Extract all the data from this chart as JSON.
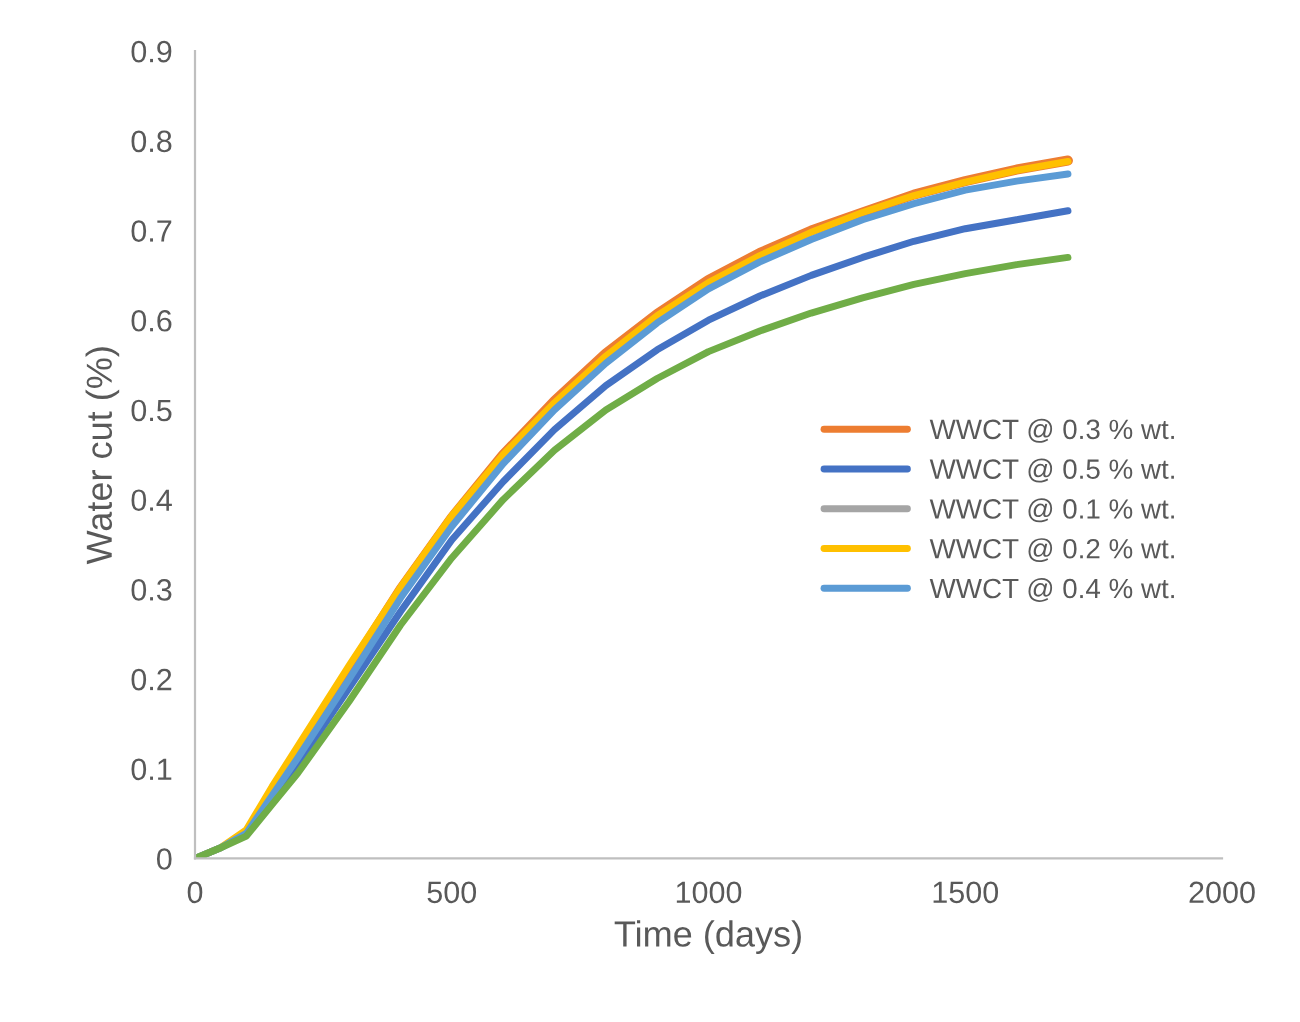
{
  "chart_data": {
    "type": "line",
    "xlabel": "Time (days)",
    "ylabel": "Water cut (%)",
    "x": [
      0,
      50,
      100,
      150,
      200,
      300,
      400,
      500,
      600,
      700,
      800,
      900,
      1000,
      1100,
      1200,
      1300,
      1400,
      1500,
      1600,
      1700
    ],
    "series": [
      {
        "name": "WWCT @ 0.3 % wt.",
        "color": "#ed7d31",
        "values": [
          null,
          null,
          null,
          0.075,
          0.12,
          0.21,
          0.3,
          0.38,
          0.45,
          0.51,
          0.563,
          0.607,
          0.645,
          0.675,
          0.7,
          0.72,
          0.74,
          0.755,
          0.768,
          0.778
        ]
      },
      {
        "name": "WWCT @ 0.5 % wt.",
        "color": "#4472c4",
        "values": [
          0,
          0.012,
          0.027,
          0.065,
          0.105,
          0.19,
          0.275,
          0.355,
          0.42,
          0.478,
          0.527,
          0.567,
          0.6,
          0.627,
          0.65,
          0.67,
          0.688,
          0.702,
          0.712,
          0.722
        ]
      },
      {
        "name": "WWCT @ 0.1 % wt.",
        "color": "#a5a5a5",
        "values": [
          null,
          null,
          null,
          null,
          null,
          null,
          null,
          null,
          null,
          null,
          null,
          null,
          null,
          null,
          null,
          null,
          null,
          null,
          null,
          null
        ]
      },
      {
        "name": "WWCT @ 0.2 % wt.",
        "color": "#ffc000",
        "values": [
          0,
          0.012,
          0.032,
          0.08,
          0.125,
          0.215,
          0.302,
          0.382,
          0.45,
          0.508,
          0.56,
          0.605,
          0.642,
          0.672,
          0.698,
          0.72,
          0.739,
          0.754,
          0.767,
          0.777
        ]
      },
      {
        "name": "WWCT @ 0.4 % wt.",
        "color": "#5b9bd5",
        "values": [
          0,
          0.012,
          0.028,
          0.07,
          0.112,
          0.2,
          0.29,
          0.37,
          0.44,
          0.5,
          0.552,
          0.597,
          0.635,
          0.665,
          0.69,
          0.712,
          0.73,
          0.745,
          0.755,
          0.763
        ]
      },
      {
        "color": "#70ad47",
        "values": [
          0,
          0.012,
          0.025,
          0.06,
          0.095,
          0.175,
          0.26,
          0.335,
          0.4,
          0.455,
          0.5,
          0.535,
          0.565,
          0.588,
          0.608,
          0.625,
          0.64,
          0.652,
          0.662,
          0.67
        ]
      }
    ],
    "xlim": [
      0,
      2000
    ],
    "xticks": [
      0,
      500,
      1000,
      1500,
      2000
    ],
    "ylim": [
      0,
      0.9
    ],
    "yticks": [
      0,
      0.1,
      0.2,
      0.3,
      0.4,
      0.5,
      0.6,
      0.7,
      0.8,
      0.9
    ],
    "grid": false,
    "legend": "right",
    "marker": "none",
    "line_style": "solid"
  }
}
